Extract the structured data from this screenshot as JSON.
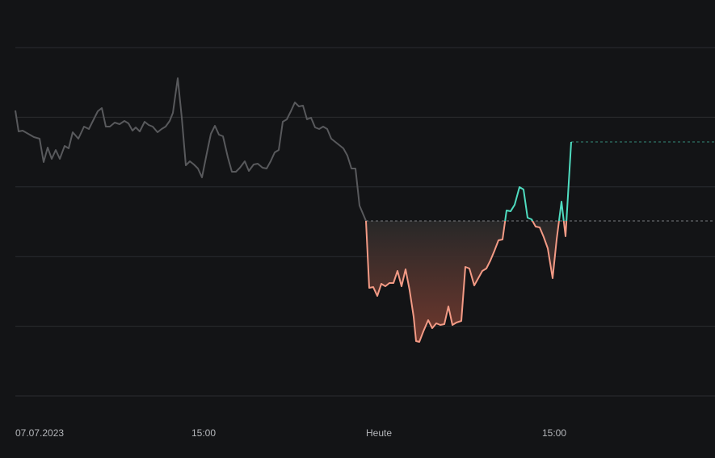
{
  "chart_data": {
    "type": "line",
    "xlim": [
      0,
      866
    ],
    "ylim": [
      0,
      432
    ],
    "xticks": [
      {
        "value": 0,
        "label": "07.07.2023"
      },
      {
        "value": 218,
        "label": "15:00"
      },
      {
        "value": 434,
        "label": "Heute"
      },
      {
        "value": 652,
        "label": "15:00"
      }
    ],
    "yticks": [
      0,
      86.4,
      172.8,
      259.2,
      345.6,
      432
    ],
    "grid": true,
    "baseline": 217,
    "last": 315,
    "color_up": "#4fdcc0",
    "color_down": "#f39a85",
    "series": [
      {
        "color": "#58595c",
        "x": [
          0,
          4,
          9,
          16,
          23,
          30,
          35,
          40,
          45,
          50,
          55,
          61,
          66,
          71,
          78,
          85,
          91,
          97,
          102,
          107,
          112,
          117,
          123,
          129,
          135,
          140,
          145,
          149,
          154,
          160,
          165,
          170,
          176,
          181,
          186,
          191,
          195,
          201,
          206,
          211,
          216,
          221,
          226,
          231,
          237,
          242,
          247,
          252,
          257,
          263,
          268,
          273,
          278,
          284,
          289,
          295,
          300,
          306,
          311,
          316,
          321,
          326,
          331,
          336,
          341,
          346,
          351,
          356,
          361,
          366,
          371,
          376,
          381,
          386,
          391,
          396,
          401,
          406,
          411,
          416,
          421,
          426,
          434
        ],
        "values": [
          354,
          328,
          329,
          325,
          321,
          319,
          290,
          308,
          294,
          305,
          294,
          310,
          307,
          327,
          319,
          334,
          331,
          343,
          353,
          357,
          334,
          334,
          339,
          337,
          341,
          338,
          329,
          333,
          328,
          340,
          336,
          334,
          327,
          331,
          334,
          341,
          351,
          394,
          345,
          286,
          291,
          287,
          282,
          271,
          301,
          325,
          335,
          324,
          322,
          296,
          278,
          278,
          283,
          291,
          279,
          287,
          288,
          283,
          282,
          291,
          302,
          305,
          340,
          343,
          353,
          364,
          359,
          360,
          343,
          345,
          333,
          331,
          334,
          331,
          319,
          315,
          311,
          307,
          298,
          282,
          282,
          236,
          217
        ]
      },
      {
        "x": [
          434,
          438,
          443,
          448,
          453,
          458,
          463,
          468,
          473,
          478,
          483,
          488,
          493,
          496,
          500,
          505,
          511,
          516,
          521,
          526,
          531,
          536,
          541,
          546,
          552,
          557,
          562,
          568,
          573,
          578,
          583,
          588,
          593,
          598,
          603,
          608,
          613,
          618,
          624,
          629,
          634,
          639,
          644,
          649,
          654,
          659,
          665,
          670,
          676,
          681,
          688
        ],
        "values": [
          217,
          134,
          135,
          124,
          139,
          136,
          140,
          140,
          155,
          136,
          157,
          131,
          98,
          68,
          67,
          80,
          94,
          84,
          90,
          88,
          89,
          111,
          88,
          91,
          93,
          160,
          158,
          137,
          146,
          155,
          158,
          168,
          180,
          193,
          194,
          230,
          229,
          237,
          259,
          256,
          221,
          219,
          210,
          209,
          197,
          183,
          146,
          194,
          241,
          198,
          315
        ]
      }
    ]
  }
}
